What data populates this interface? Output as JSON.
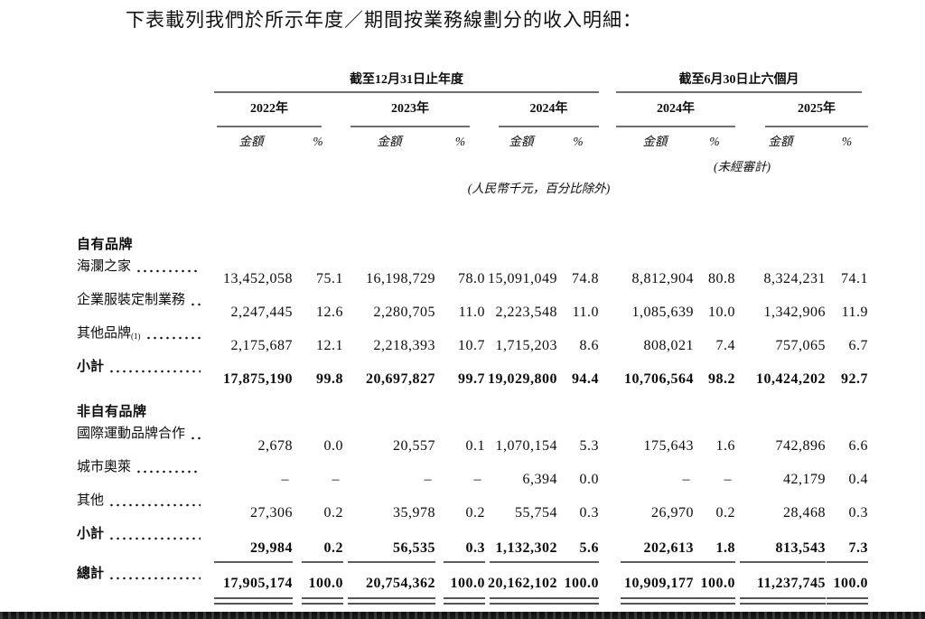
{
  "intro": "下表載列我們於所示年度／期間按業務線劃分的收入明細：",
  "table": {
    "period_groups": [
      {
        "label": "截至12月31日止年度",
        "years": [
          "2022年",
          "2023年",
          "2024年"
        ]
      },
      {
        "label": "截至6月30日止六個月",
        "years": [
          "2024年",
          "2025年"
        ]
      }
    ],
    "col_headers": {
      "amount": "金額",
      "percent": "%"
    },
    "notes": {
      "unaudited": "(未經審計)",
      "units": "(人民幣千元，百分比除外)"
    },
    "rows": [
      {
        "type": "section",
        "label": "自有品牌"
      },
      {
        "type": "data",
        "label": "海瀾之家",
        "values": [
          "13,452,058",
          "75.1",
          "16,198,729",
          "78.0",
          "15,091,049",
          "74.8",
          "8,812,904",
          "80.8",
          "8,324,231",
          "74.1"
        ]
      },
      {
        "type": "data",
        "label": "企業服裝定制業務",
        "values": [
          "2,247,445",
          "12.6",
          "2,280,705",
          "11.0",
          "2,223,548",
          "11.0",
          "1,085,639",
          "10.0",
          "1,342,906",
          "11.9"
        ]
      },
      {
        "type": "data",
        "label": "其他品牌",
        "sup": "(1)",
        "values": [
          "2,175,687",
          "12.1",
          "2,218,393",
          "10.7",
          "1,715,203",
          "8.6",
          "808,021",
          "7.4",
          "757,065",
          "6.7"
        ]
      },
      {
        "type": "subtotal",
        "label": "小計",
        "values": [
          "17,875,190",
          "99.8",
          "20,697,827",
          "99.7",
          "19,029,800",
          "94.4",
          "10,706,564",
          "98.2",
          "10,424,202",
          "92.7"
        ]
      },
      {
        "type": "section",
        "label": "非自有品牌"
      },
      {
        "type": "data",
        "label": "國際運動品牌合作",
        "values": [
          "2,678",
          "0.0",
          "20,557",
          "0.1",
          "1,070,154",
          "5.3",
          "175,643",
          "1.6",
          "742,896",
          "6.6"
        ]
      },
      {
        "type": "data",
        "label": "城市奧萊",
        "values": [
          "–",
          "–",
          "–",
          "–",
          "6,394",
          "0.0",
          "–",
          "–",
          "42,179",
          "0.4"
        ]
      },
      {
        "type": "data",
        "label": "其他",
        "values": [
          "27,306",
          "0.2",
          "35,978",
          "0.2",
          "55,754",
          "0.3",
          "26,970",
          "0.2",
          "28,468",
          "0.3"
        ]
      },
      {
        "type": "subtotal-ruled",
        "label": "小計",
        "values": [
          "29,984",
          "0.2",
          "56,535",
          "0.3",
          "1,132,302",
          "5.6",
          "202,613",
          "1.8",
          "813,543",
          "7.3"
        ]
      },
      {
        "type": "total",
        "label": "總計",
        "values": [
          "17,905,174",
          "100.0",
          "20,754,362",
          "100.0",
          "20,162,102",
          "100.0",
          "10,909,177",
          "100.0",
          "11,237,745",
          "100.0"
        ]
      }
    ]
  }
}
